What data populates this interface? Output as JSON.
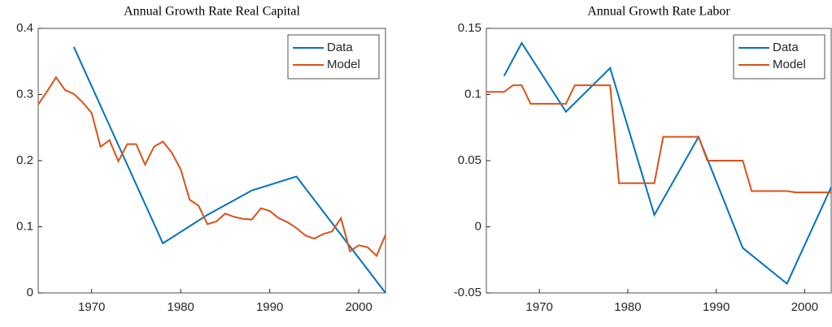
{
  "chart_data": [
    {
      "type": "line",
      "title": "Annual Growth Rate Real Capital",
      "xlim": [
        1964,
        2003
      ],
      "xticks": [
        1970,
        1980,
        1990,
        2000
      ],
      "ylim": [
        0,
        0.4
      ],
      "yticks": [
        0,
        0.1,
        0.2,
        0.3,
        0.4
      ],
      "legend": "northeast",
      "grid": false,
      "series": [
        {
          "name": "Data",
          "color": "#0072bd",
          "x": [
            1968,
            1978,
            1983,
            1988,
            1993,
            2003
          ],
          "values": [
            0.372,
            0.075,
            0.118,
            0.155,
            0.176,
            0.0
          ]
        },
        {
          "name": "Model",
          "color": "#d95319",
          "x": [
            1964,
            1965,
            1966,
            1967,
            1968,
            1969,
            1970,
            1971,
            1972,
            1973,
            1974,
            1975,
            1976,
            1977,
            1978,
            1979,
            1980,
            1981,
            1982,
            1983,
            1984,
            1985,
            1986,
            1987,
            1988,
            1989,
            1990,
            1991,
            1992,
            1993,
            1994,
            1995,
            1996,
            1997,
            1998,
            1999,
            2000,
            2001,
            2002,
            2003
          ],
          "values": [
            0.285,
            0.305,
            0.326,
            0.307,
            0.301,
            0.288,
            0.272,
            0.221,
            0.231,
            0.199,
            0.225,
            0.225,
            0.194,
            0.221,
            0.229,
            0.212,
            0.187,
            0.141,
            0.132,
            0.104,
            0.108,
            0.12,
            0.115,
            0.112,
            0.111,
            0.128,
            0.124,
            0.113,
            0.107,
            0.098,
            0.087,
            0.082,
            0.089,
            0.093,
            0.113,
            0.063,
            0.072,
            0.069,
            0.056,
            0.088
          ]
        }
      ]
    },
    {
      "type": "line",
      "title": "Annual Growth Rate Labor",
      "xlim": [
        1964,
        2003
      ],
      "xticks": [
        1970,
        1980,
        1990,
        2000
      ],
      "ylim": [
        -0.05,
        0.15
      ],
      "yticks": [
        -0.05,
        0,
        0.05,
        0.1,
        0.15
      ],
      "legend": "northeast",
      "grid": false,
      "series": [
        {
          "name": "Data",
          "color": "#0072bd",
          "x": [
            1966,
            1968,
            1973,
            1978,
            1983,
            1988,
            1993,
            1998,
            2003
          ],
          "values": [
            0.114,
            0.139,
            0.087,
            0.12,
            0.009,
            0.068,
            -0.016,
            -0.043,
            0.03
          ]
        },
        {
          "name": "Model",
          "color": "#d95319",
          "x": [
            1964,
            1965,
            1966,
            1967,
            1968,
            1969,
            1970,
            1971,
            1972,
            1973,
            1974,
            1975,
            1976,
            1977,
            1978,
            1979,
            1980,
            1981,
            1982,
            1983,
            1984,
            1985,
            1986,
            1987,
            1988,
            1989,
            1990,
            1991,
            1992,
            1993,
            1994,
            1995,
            1996,
            1997,
            1998,
            1999,
            2000,
            2001,
            2002,
            2003
          ],
          "values": [
            0.102,
            0.102,
            0.102,
            0.107,
            0.107,
            0.093,
            0.093,
            0.093,
            0.093,
            0.093,
            0.107,
            0.107,
            0.107,
            0.107,
            0.107,
            0.033,
            0.033,
            0.033,
            0.033,
            0.033,
            0.068,
            0.068,
            0.068,
            0.068,
            0.068,
            0.05,
            0.05,
            0.05,
            0.05,
            0.05,
            0.027,
            0.027,
            0.027,
            0.027,
            0.027,
            0.026,
            0.026,
            0.026,
            0.026,
            0.026
          ]
        }
      ]
    }
  ]
}
